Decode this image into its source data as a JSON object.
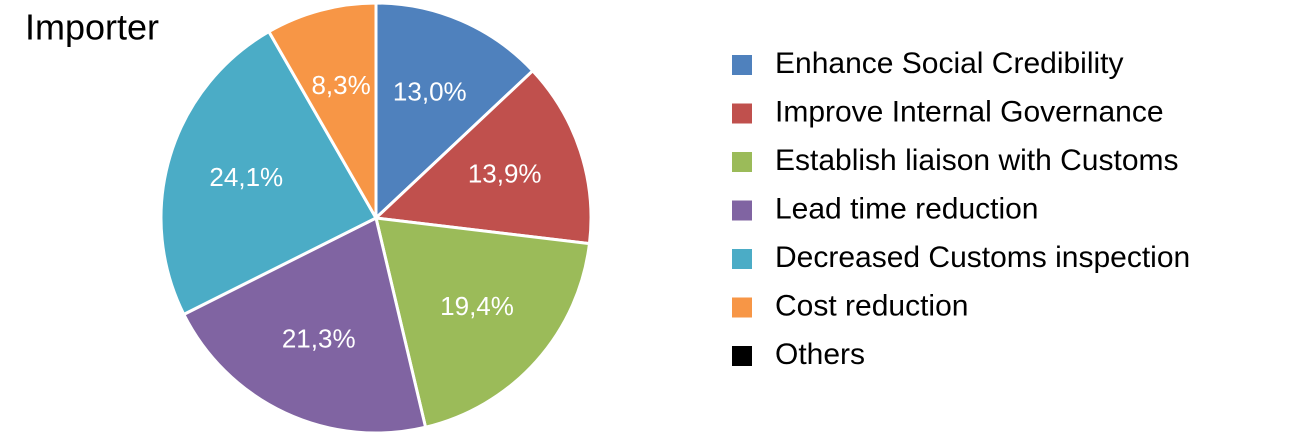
{
  "chart_data": {
    "type": "pie",
    "title": "Importer",
    "categories": [
      "Enhance Social Credibility",
      "Improve Internal Governance",
      "Establish liaison with Customs",
      "Lead time reduction",
      "Decreased Customs inspection",
      "Cost reduction",
      "Others"
    ],
    "values": [
      13.0,
      13.9,
      19.4,
      21.3,
      24.1,
      8.3,
      0
    ],
    "value_labels": [
      "13,0%",
      "13,9%",
      "19,4%",
      "21,3%",
      "24,1%",
      "8,3%",
      null
    ],
    "colors": [
      "#4f81bd",
      "#c0504d",
      "#9bbb59",
      "#8064a2",
      "#4bacc6",
      "#f79646",
      "#000000"
    ],
    "legend": "right"
  }
}
